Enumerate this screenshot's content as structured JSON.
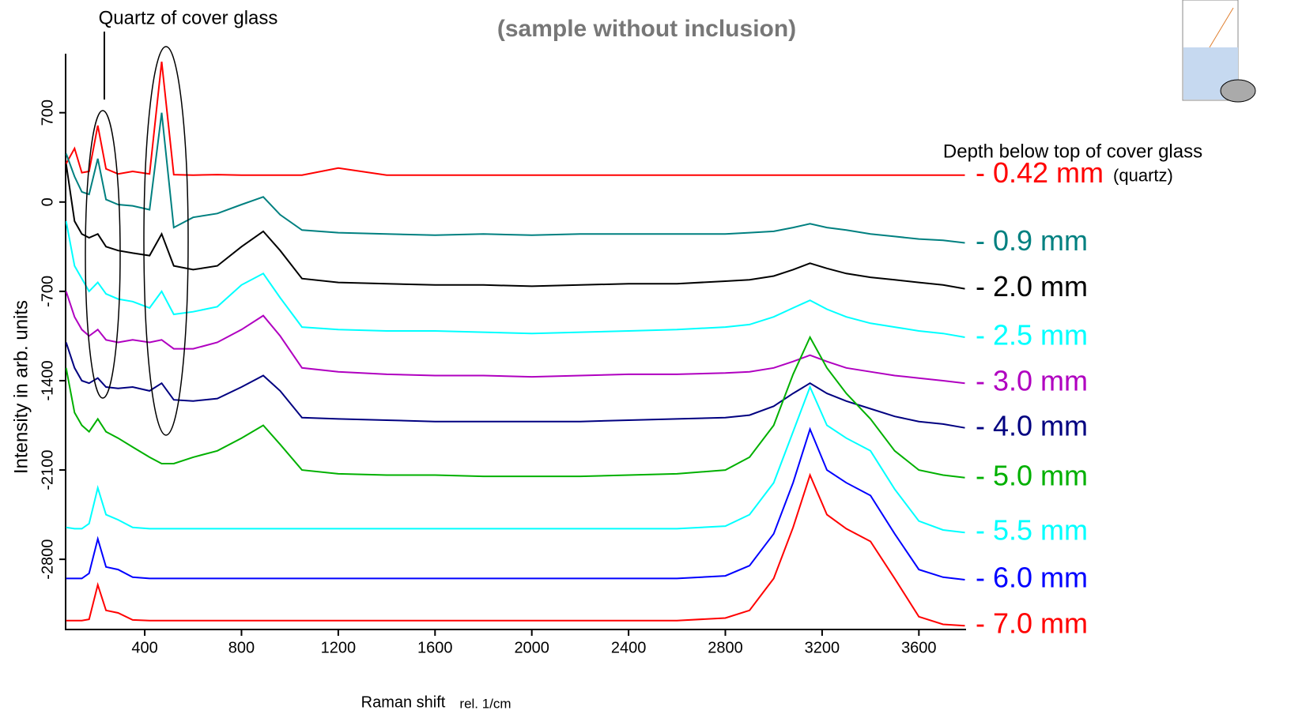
{
  "chart_data": {
    "type": "line",
    "title": "(sample without inclusion)",
    "annotation": "Quartz of cover glass",
    "legend_title": "Depth below top of cover glass",
    "series_note": "(quartz)",
    "x_label": "Raman shift",
    "x_unit": "rel. 1/cm",
    "y_label": "Intensity in arb. units",
    "xlim": [
      73,
      3795
    ],
    "ylim": [
      -3350,
      1150
    ],
    "xticks": [
      400,
      800,
      1200,
      1600,
      2000,
      2400,
      2800,
      3200,
      3600
    ],
    "yticks": [
      -2800,
      -2100,
      -1400,
      -700,
      0,
      700
    ],
    "x": [
      75,
      110,
      140,
      170,
      206,
      240,
      290,
      350,
      420,
      470,
      520,
      600,
      700,
      800,
      890,
      960,
      1050,
      1200,
      1400,
      1600,
      1800,
      2000,
      2200,
      2400,
      2600,
      2800,
      2900,
      3000,
      3080,
      3150,
      3220,
      3300,
      3400,
      3500,
      3600,
      3700,
      3790
    ],
    "series": [
      {
        "name": "- 0.42 mm",
        "color": "#ff0000",
        "values": [
          300,
          420,
          230,
          240,
          600,
          260,
          220,
          240,
          220,
          1100,
          215,
          211,
          215,
          211,
          211,
          211,
          211,
          266,
          211,
          211,
          211,
          211,
          211,
          211,
          211,
          211,
          211,
          211,
          211,
          211,
          211,
          211,
          211,
          211,
          211,
          211,
          211
        ]
      },
      {
        "name": "- 0.9 mm",
        "color": "#008080",
        "values": [
          380,
          200,
          80,
          60,
          340,
          20,
          -20,
          -30,
          -60,
          700,
          -200,
          -120,
          -90,
          -20,
          40,
          -100,
          -220,
          -240,
          -250,
          -260,
          -250,
          -260,
          -250,
          -250,
          -250,
          -250,
          -240,
          -230,
          -200,
          -170,
          -200,
          -220,
          -250,
          -270,
          -290,
          -300,
          -320
        ]
      },
      {
        "name": "- 2.0 mm",
        "color": "#000000",
        "values": [
          300,
          -150,
          -250,
          -280,
          -250,
          -350,
          -380,
          -400,
          -420,
          -250,
          -500,
          -530,
          -500,
          -350,
          -230,
          -380,
          -600,
          -630,
          -640,
          -650,
          -650,
          -660,
          -650,
          -640,
          -640,
          -620,
          -610,
          -580,
          -530,
          -480,
          -520,
          -560,
          -590,
          -610,
          -630,
          -650,
          -680
        ]
      },
      {
        "name": "- 2.5 mm",
        "color": "#00ffff",
        "values": [
          -150,
          -500,
          -600,
          -700,
          -630,
          -720,
          -760,
          -780,
          -830,
          -700,
          -880,
          -860,
          -820,
          -650,
          -560,
          -750,
          -980,
          -1000,
          -1010,
          -1010,
          -1020,
          -1030,
          -1020,
          -1010,
          -1000,
          -980,
          -960,
          -900,
          -830,
          -770,
          -840,
          -900,
          -950,
          -980,
          -1010,
          -1030,
          -1060
        ]
      },
      {
        "name": "- 3.0 mm",
        "color": "#b000c0",
        "values": [
          -700,
          -900,
          -1000,
          -1050,
          -1000,
          -1080,
          -1100,
          -1080,
          -1100,
          -1080,
          -1150,
          -1150,
          -1100,
          -1000,
          -890,
          -1050,
          -1300,
          -1330,
          -1350,
          -1360,
          -1360,
          -1370,
          -1360,
          -1350,
          -1350,
          -1340,
          -1330,
          -1300,
          -1250,
          -1200,
          -1250,
          -1300,
          -1330,
          -1360,
          -1380,
          -1400,
          -1420
        ]
      },
      {
        "name": "- 4.0 mm",
        "color": "#000080",
        "values": [
          -1100,
          -1300,
          -1400,
          -1420,
          -1380,
          -1450,
          -1460,
          -1450,
          -1480,
          -1420,
          -1550,
          -1560,
          -1540,
          -1450,
          -1360,
          -1480,
          -1690,
          -1700,
          -1710,
          -1720,
          -1720,
          -1720,
          -1720,
          -1710,
          -1700,
          -1690,
          -1670,
          -1600,
          -1500,
          -1420,
          -1500,
          -1560,
          -1620,
          -1680,
          -1720,
          -1740,
          -1770
        ]
      },
      {
        "name": "- 5.0 mm",
        "color": "#00b000",
        "values": [
          -1300,
          -1650,
          -1750,
          -1800,
          -1700,
          -1800,
          -1850,
          -1920,
          -2000,
          -2050,
          -2050,
          -2000,
          -1950,
          -1850,
          -1750,
          -1900,
          -2100,
          -2130,
          -2140,
          -2140,
          -2150,
          -2150,
          -2150,
          -2140,
          -2130,
          -2100,
          -2000,
          -1750,
          -1350,
          -1060,
          -1300,
          -1500,
          -1700,
          -1950,
          -2100,
          -2140,
          -2160
        ]
      },
      {
        "name": "- 5.5 mm",
        "color": "#00ffff",
        "values": [
          -2550,
          -2560,
          -2560,
          -2520,
          -2240,
          -2450,
          -2490,
          -2550,
          -2560,
          -2560,
          -2560,
          -2560,
          -2560,
          -2560,
          -2560,
          -2560,
          -2560,
          -2560,
          -2560,
          -2560,
          -2560,
          -2560,
          -2560,
          -2560,
          -2560,
          -2540,
          -2450,
          -2200,
          -1800,
          -1450,
          -1750,
          -1850,
          -1950,
          -2250,
          -2500,
          -2570,
          -2590
        ]
      },
      {
        "name": "- 6.0 mm",
        "color": "#0000ff",
        "values": [
          -2950,
          -2950,
          -2950,
          -2910,
          -2640,
          -2860,
          -2880,
          -2940,
          -2950,
          -2950,
          -2950,
          -2950,
          -2950,
          -2950,
          -2950,
          -2950,
          -2950,
          -2950,
          -2950,
          -2950,
          -2950,
          -2950,
          -2950,
          -2950,
          -2950,
          -2930,
          -2850,
          -2600,
          -2200,
          -1780,
          -2100,
          -2200,
          -2300,
          -2600,
          -2880,
          -2940,
          -2960
        ]
      },
      {
        "name": "- 7.0 mm",
        "color": "#ff0000",
        "values": [
          -3280,
          -3280,
          -3280,
          -3270,
          -3000,
          -3200,
          -3220,
          -3275,
          -3280,
          -3280,
          -3280,
          -3280,
          -3280,
          -3280,
          -3280,
          -3280,
          -3280,
          -3280,
          -3280,
          -3280,
          -3280,
          -3280,
          -3280,
          -3280,
          -3280,
          -3260,
          -3200,
          -2950,
          -2550,
          -2140,
          -2450,
          -2560,
          -2660,
          -2950,
          -3250,
          -3310,
          -3320
        ]
      }
    ]
  }
}
